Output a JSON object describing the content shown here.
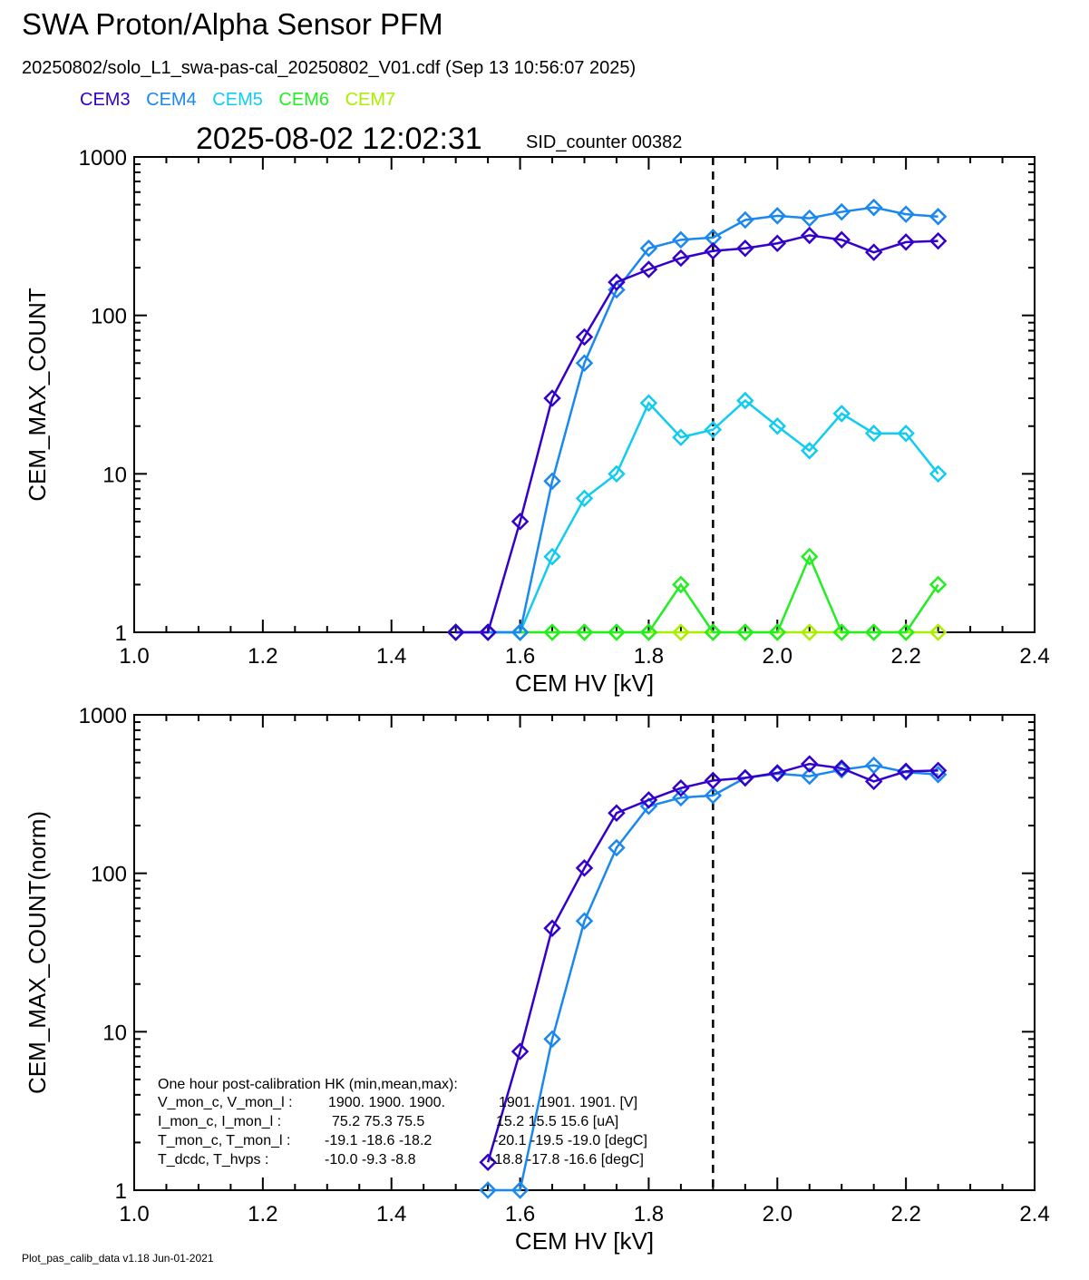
{
  "header": {
    "title": "SWA Proton/Alpha Sensor PFM",
    "subtitle": "20250802/solo_L1_swa-pas-cal_20250802_V01.cdf  (Sep 13 10:56:07 2025)",
    "timestamp": "2025-08-02 12:02:31",
    "sid_label": "SID_counter 00382"
  },
  "legend": [
    {
      "name": "CEM3",
      "color": "#3300cc"
    },
    {
      "name": "CEM4",
      "color": "#1a88ee"
    },
    {
      "name": "CEM5",
      "color": "#11ccf0"
    },
    {
      "name": "CEM6",
      "color": "#22ee22"
    },
    {
      "name": "CEM7",
      "color": "#aaee00"
    }
  ],
  "footer": "Plot_pas_calib_data v1.18 Jun-01-2021",
  "hk": {
    "title": "One hour post-calibration HK (min,mean,max):",
    "rows": [
      {
        "label": "V_mon_c, V_mon_l :",
        "a": "1900.  1900.  1900.",
        "b": "1901.  1901.  1901. [V]"
      },
      {
        "label": "I_mon_c,  I_mon_l :",
        "a": "75.2   75.3   75.5",
        "b": "15.2   15.5   15.6  [uA]"
      },
      {
        "label": "T_mon_c, T_mon_l :",
        "a": "-19.1  -18.6  -18.2",
        "b": "-20.1  -19.5  -19.0  [degC]"
      },
      {
        "label": "T_dcdc,    T_hvps :",
        "a": "-10.0   -9.3   -8.8",
        "b": "-18.8  -17.8  -16.6  [degC]"
      }
    ]
  },
  "chart_data": [
    {
      "type": "line",
      "xlabel": "CEM HV [kV]",
      "ylabel": "CEM_MAX_COUNT",
      "xlim": [
        1.0,
        2.4
      ],
      "ylim": [
        1,
        1000
      ],
      "yscale": "log",
      "xticks": [
        "1.0",
        "1.2",
        "1.4",
        "1.6",
        "1.8",
        "2.0",
        "2.2",
        "2.4"
      ],
      "yticks": [
        "1",
        "10",
        "100",
        "1000"
      ],
      "vline": 1.9,
      "x": [
        1.5,
        1.55,
        1.6,
        1.65,
        1.7,
        1.75,
        1.8,
        1.85,
        1.9,
        1.95,
        2.0,
        2.05,
        2.1,
        2.15,
        2.2,
        2.25
      ],
      "series": [
        {
          "name": "CEM7",
          "color": "#aaee00",
          "values": [
            1,
            1,
            1,
            1,
            1,
            1,
            1,
            1,
            1,
            1,
            1,
            1,
            1,
            1,
            1,
            1
          ]
        },
        {
          "name": "CEM6",
          "color": "#22ee22",
          "values": [
            1,
            1,
            1,
            1,
            1,
            1,
            1,
            2,
            1,
            1,
            1,
            3,
            1,
            1,
            1,
            2
          ]
        },
        {
          "name": "CEM5",
          "color": "#11ccf0",
          "values": [
            1,
            1,
            1,
            3,
            7,
            10,
            28,
            17,
            19,
            29,
            20,
            14,
            24,
            18,
            18,
            10
          ]
        },
        {
          "name": "CEM4",
          "color": "#1a88ee",
          "values": [
            1,
            1,
            1,
            9,
            50,
            145,
            265,
            300,
            310,
            400,
            425,
            410,
            450,
            480,
            435,
            420
          ]
        },
        {
          "name": "CEM3",
          "color": "#3300cc",
          "values": [
            1,
            1,
            5,
            30,
            73,
            162,
            195,
            230,
            255,
            265,
            285,
            320,
            300,
            250,
            290,
            295
          ]
        }
      ]
    },
    {
      "type": "line",
      "xlabel": "CEM HV [kV]",
      "ylabel": "CEM_MAX_COUNT(norm)",
      "xlim": [
        1.0,
        2.4
      ],
      "ylim": [
        1,
        1000
      ],
      "yscale": "log",
      "xticks": [
        "1.0",
        "1.2",
        "1.4",
        "1.6",
        "1.8",
        "2.0",
        "2.2",
        "2.4"
      ],
      "yticks": [
        "1",
        "10",
        "100",
        "1000"
      ],
      "vline": 1.9,
      "x": [
        1.55,
        1.6,
        1.65,
        1.7,
        1.75,
        1.8,
        1.85,
        1.9,
        1.95,
        2.0,
        2.05,
        2.1,
        2.15,
        2.2,
        2.25
      ],
      "series": [
        {
          "name": "CEM4",
          "color": "#1a88ee",
          "values": [
            1,
            1,
            9,
            50,
            145,
            265,
            300,
            310,
            400,
            425,
            410,
            450,
            480,
            435,
            420
          ]
        },
        {
          "name": "CEM3",
          "color": "#3300cc",
          "values": [
            1.5,
            7.5,
            45,
            108,
            240,
            290,
            345,
            385,
            400,
            430,
            490,
            460,
            380,
            440,
            445
          ]
        }
      ]
    }
  ]
}
